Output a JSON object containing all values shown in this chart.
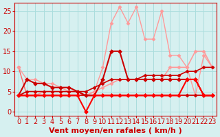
{
  "xlabel": "Vent moyen/en rafales ( km/h )",
  "ylabel": "",
  "background_color": "#d6f0f0",
  "grid_color": "#aadddd",
  "x_ticks": [
    0,
    1,
    2,
    3,
    4,
    5,
    6,
    7,
    8,
    9,
    10,
    11,
    12,
    13,
    14,
    15,
    16,
    17,
    18,
    19,
    20,
    21,
    22,
    23
  ],
  "y_ticks": [
    0,
    5,
    10,
    15,
    20,
    25
  ],
  "ylim": [
    -1,
    27
  ],
  "xlim": [
    -0.5,
    23.5
  ],
  "lines": [
    {
      "x": [
        0,
        1,
        2,
        3,
        4,
        5,
        6,
        7,
        8,
        9,
        10,
        11,
        12,
        13,
        14,
        15,
        16,
        17,
        18,
        19,
        20,
        21,
        22,
        23
      ],
      "y": [
        11,
        4,
        4,
        4,
        4,
        4,
        4,
        4,
        4,
        4,
        4,
        4,
        4,
        4,
        4,
        4,
        4,
        4,
        4,
        4,
        4,
        4,
        4,
        4
      ],
      "color": "#ff6666",
      "linewidth": 1.0,
      "marker": "D",
      "markersize": 2.5,
      "zorder": 2
    },
    {
      "x": [
        0,
        1,
        2,
        3,
        4,
        5,
        6,
        7,
        8,
        9,
        10,
        11,
        12,
        13,
        14,
        15,
        16,
        17,
        18,
        19,
        20,
        21,
        22,
        23
      ],
      "y": [
        4,
        4,
        4,
        4,
        4,
        4,
        4,
        4,
        4,
        4,
        4,
        4,
        4,
        4,
        4,
        4,
        4,
        4,
        4,
        4,
        4,
        4,
        4,
        4
      ],
      "color": "#cc0000",
      "linewidth": 1.2,
      "marker": "D",
      "markersize": 2.5,
      "zorder": 3
    },
    {
      "x": [
        0,
        1,
        2,
        3,
        4,
        5,
        6,
        7,
        8,
        9,
        10,
        11,
        12,
        13,
        14,
        15,
        16,
        17,
        18,
        19,
        20,
        21,
        22,
        23
      ],
      "y": [
        4,
        5,
        5,
        5,
        5,
        5,
        5,
        5,
        5,
        6,
        7,
        8,
        8,
        8,
        8,
        9,
        9,
        9,
        9,
        9,
        10,
        10,
        11,
        11
      ],
      "color": "#cc0000",
      "linewidth": 1.2,
      "marker": "D",
      "markersize": 2.5,
      "zorder": 3
    },
    {
      "x": [
        0,
        1,
        2,
        3,
        4,
        5,
        6,
        7,
        8,
        9,
        10,
        11,
        12,
        13,
        14,
        15,
        16,
        17,
        18,
        19,
        20,
        21,
        22,
        23
      ],
      "y": [
        4,
        8,
        7,
        7,
        6,
        6,
        6,
        5,
        4,
        4,
        8,
        15,
        15,
        8,
        8,
        8,
        8,
        8,
        8,
        8,
        8,
        8,
        4,
        4
      ],
      "color": "#cc0000",
      "linewidth": 1.5,
      "marker": "D",
      "markersize": 3,
      "zorder": 4
    },
    {
      "x": [
        0,
        1,
        2,
        3,
        4,
        5,
        6,
        7,
        8,
        9,
        10,
        11,
        12,
        13,
        14,
        15,
        16,
        17,
        18,
        19,
        20,
        21,
        22,
        23
      ],
      "y": [
        4,
        4,
        4,
        4,
        4,
        4,
        4,
        4,
        0,
        4,
        4,
        4,
        4,
        4,
        4,
        4,
        4,
        4,
        4,
        4,
        8,
        8,
        4,
        4
      ],
      "color": "#ff0000",
      "linewidth": 1.5,
      "marker": "D",
      "markersize": 3,
      "zorder": 4
    },
    {
      "x": [
        0,
        1,
        2,
        3,
        4,
        5,
        6,
        7,
        8,
        9,
        10,
        11,
        12,
        13,
        14,
        15,
        16,
        17,
        18,
        19,
        20,
        21,
        22,
        23
      ],
      "y": [
        4,
        4,
        4,
        5,
        5,
        5,
        5,
        5,
        4,
        5,
        6,
        7,
        8,
        8,
        8,
        8,
        8,
        8,
        11,
        11,
        11,
        15,
        15,
        11
      ],
      "color": "#ff9999",
      "linewidth": 1.2,
      "marker": "D",
      "markersize": 2.5,
      "zorder": 2
    },
    {
      "x": [
        0,
        1,
        2,
        3,
        4,
        5,
        6,
        7,
        8,
        9,
        10,
        11,
        12,
        13,
        14,
        15,
        16,
        17,
        18,
        19,
        20,
        21,
        22,
        23
      ],
      "y": [
        11,
        8,
        8,
        7,
        7,
        6,
        5,
        5,
        4,
        5,
        11,
        22,
        26,
        22,
        26,
        18,
        18,
        25,
        14,
        14,
        11,
        4,
        14,
        11
      ],
      "color": "#ff9999",
      "linewidth": 1.0,
      "marker": "D",
      "markersize": 2.5,
      "zorder": 2
    }
  ],
  "tick_label_color": "#cc0000",
  "tick_label_fontsize": 7,
  "xlabel_fontsize": 8,
  "xlabel_color": "#cc0000"
}
